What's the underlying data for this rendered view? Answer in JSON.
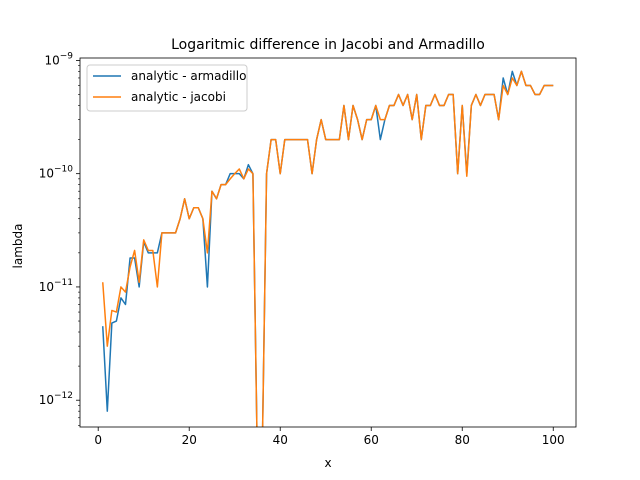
{
  "chart_data": {
    "type": "line",
    "title": "Logaritmic difference in Jacobi and Armadillo",
    "xlabel": "x",
    "ylabel": "lambda",
    "xlim": [
      -4,
      105
    ],
    "ylim": [
      5.8e-13,
      1.05e-09
    ],
    "yscale": "log",
    "grid": false,
    "legend_position": "top-left",
    "x_ticks": [
      {
        "value": 0,
        "label": "0"
      },
      {
        "value": 20,
        "label": "20"
      },
      {
        "value": 40,
        "label": "40"
      },
      {
        "value": 60,
        "label": "60"
      },
      {
        "value": 80,
        "label": "80"
      },
      {
        "value": 100,
        "label": "100"
      }
    ],
    "y_ticks": [
      {
        "value": 1e-12,
        "base": "10",
        "exp": "−12"
      },
      {
        "value": 1e-11,
        "base": "10",
        "exp": "−11"
      },
      {
        "value": 1e-10,
        "base": "10",
        "exp": "−10"
      },
      {
        "value": 1e-09,
        "base": "10",
        "exp": "−9"
      }
    ],
    "x": [
      1,
      2,
      3,
      4,
      5,
      6,
      7,
      8,
      9,
      10,
      11,
      12,
      13,
      14,
      15,
      16,
      17,
      18,
      19,
      20,
      21,
      22,
      23,
      24,
      25,
      26,
      27,
      28,
      29,
      30,
      31,
      32,
      33,
      34,
      35,
      36,
      37,
      38,
      39,
      40,
      41,
      42,
      43,
      44,
      45,
      46,
      47,
      48,
      49,
      50,
      51,
      52,
      53,
      54,
      55,
      56,
      57,
      58,
      59,
      60,
      61,
      62,
      63,
      64,
      65,
      66,
      67,
      68,
      69,
      70,
      71,
      72,
      73,
      74,
      75,
      76,
      77,
      78,
      79,
      80,
      81,
      82,
      83,
      84,
      85,
      86,
      87,
      88,
      89,
      90,
      91,
      92,
      93,
      94,
      95,
      96,
      97,
      98,
      99,
      100
    ],
    "series": [
      {
        "name": "analytic - armadillo",
        "color": "#1f77b4",
        "values": [
          4.5e-12,
          8e-13,
          4.8e-12,
          5e-12,
          8e-12,
          7e-12,
          1.8e-11,
          1.8e-11,
          1e-11,
          2.5e-11,
          2e-11,
          2e-11,
          2e-11,
          3e-11,
          3e-11,
          3e-11,
          3e-11,
          4e-11,
          6e-11,
          4e-11,
          5e-11,
          5e-11,
          4e-11,
          1e-11,
          7e-11,
          6e-11,
          8e-11,
          8e-11,
          1e-10,
          1e-10,
          1e-10,
          9e-11,
          1.2e-10,
          1e-10,
          null,
          null,
          1e-10,
          2e-10,
          2e-10,
          1e-10,
          2e-10,
          2e-10,
          2e-10,
          2e-10,
          2e-10,
          2e-10,
          1e-10,
          2e-10,
          3e-10,
          2e-10,
          2e-10,
          2e-10,
          2e-10,
          4e-10,
          2e-10,
          4e-10,
          3e-10,
          2e-10,
          3e-10,
          3e-10,
          4e-10,
          2e-10,
          3e-10,
          4e-10,
          4e-10,
          5e-10,
          4e-10,
          5e-10,
          3e-10,
          5e-10,
          2e-10,
          4e-10,
          4e-10,
          5e-10,
          4e-10,
          4e-10,
          5e-10,
          5e-10,
          1e-10,
          4e-10,
          1e-10,
          4e-10,
          5e-10,
          4e-10,
          5e-10,
          5e-10,
          5e-10,
          3e-10,
          7e-10,
          5e-10,
          8e-10,
          6e-10,
          8e-10,
          6e-10,
          6e-10,
          5e-10,
          5e-10,
          6e-10,
          6e-10,
          6e-10
        ]
      },
      {
        "name": "analytic - jacobi",
        "color": "#ff7f0e",
        "values": [
          1.1e-11,
          3e-12,
          6.2e-12,
          6e-12,
          1e-11,
          9e-12,
          1.5e-11,
          2.1e-11,
          1.1e-11,
          2.6e-11,
          2.1e-11,
          2.1e-11,
          1e-11,
          3e-11,
          3e-11,
          3e-11,
          3e-11,
          4e-11,
          6e-11,
          4e-11,
          5e-11,
          5e-11,
          4e-11,
          2e-11,
          7e-11,
          6e-11,
          8e-11,
          8e-11,
          9e-11,
          1e-10,
          1.1e-10,
          9e-11,
          1.1e-10,
          1e-10,
          null,
          null,
          1e-10,
          2e-10,
          2e-10,
          1e-10,
          2e-10,
          2e-10,
          2e-10,
          2e-10,
          2e-10,
          2e-10,
          1e-10,
          2e-10,
          3e-10,
          2e-10,
          2e-10,
          2e-10,
          2e-10,
          4e-10,
          2e-10,
          4e-10,
          3e-10,
          2e-10,
          3e-10,
          3e-10,
          4e-10,
          3e-10,
          3e-10,
          4e-10,
          4e-10,
          5e-10,
          4e-10,
          5e-10,
          3e-10,
          5e-10,
          2e-10,
          4e-10,
          4e-10,
          5e-10,
          4e-10,
          4e-10,
          5e-10,
          5e-10,
          1e-10,
          4e-10,
          9.5e-11,
          4e-10,
          5e-10,
          4e-10,
          5e-10,
          5e-10,
          5e-10,
          3e-10,
          6e-10,
          5e-10,
          7e-10,
          6e-10,
          8e-10,
          6e-10,
          6e-10,
          5e-10,
          5e-10,
          6e-10,
          6e-10,
          6e-10
        ]
      }
    ]
  }
}
